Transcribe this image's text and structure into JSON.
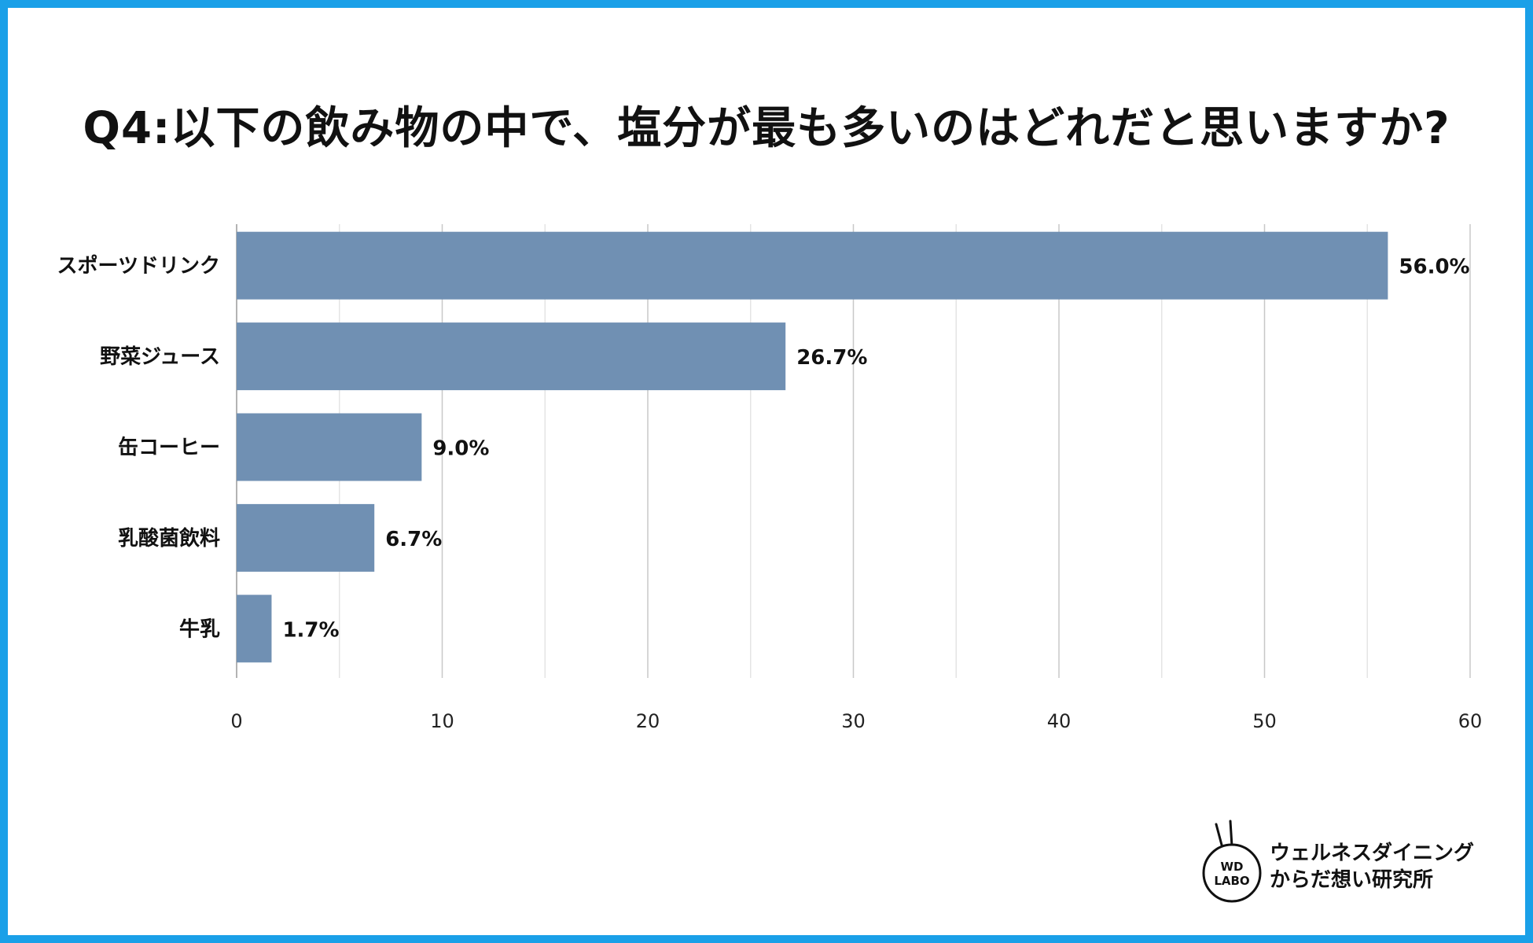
{
  "title": "Q4:以下の飲み物の中で、塩分が最も多いのはどれだと思いますか?",
  "colors": {
    "border": "#1aa0e8",
    "bar": "#7090b3",
    "grid": "#c8c8c8",
    "grid_minor": "#e4e4e4"
  },
  "chart_data": {
    "type": "bar",
    "orientation": "horizontal",
    "categories": [
      "スポーツドリンク",
      "野菜ジュース",
      "缶コーヒー",
      "乳酸菌飲料",
      "牛乳"
    ],
    "values": [
      56.0,
      26.7,
      9.0,
      6.7,
      1.7
    ],
    "value_labels": [
      "56.0%",
      "26.7%",
      "9.0%",
      "6.7%",
      "1.7%"
    ],
    "xlim": [
      0,
      60
    ],
    "xticks": [
      0,
      10,
      20,
      30,
      40,
      50,
      60
    ],
    "grid": true,
    "legend": "none"
  },
  "logo": {
    "mark_line1": "WD",
    "mark_line2": "LABO",
    "text_line1": "ウェルネスダイニング",
    "text_line2": "からだ想い研究所"
  }
}
